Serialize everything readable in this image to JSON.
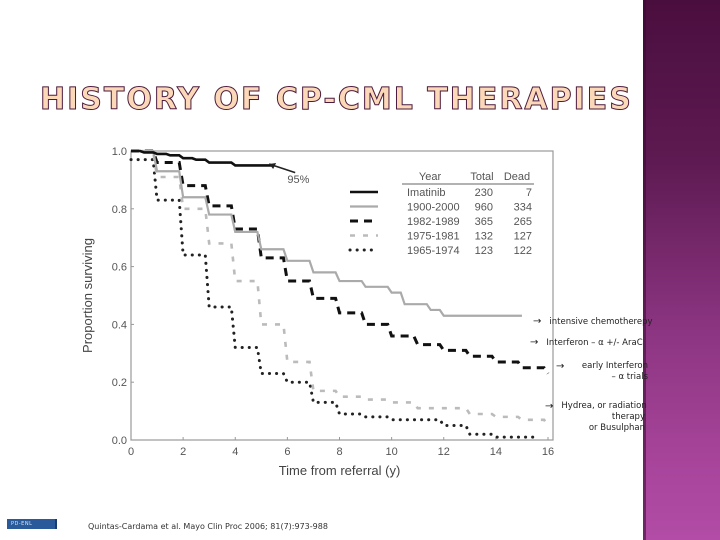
{
  "slide": {
    "title": "HISTORY OF CP-CML THERAPIES",
    "citation": "Quintas-Cardama et al. Mayo Clin Proc 2006; 81(7):973-988",
    "logo_text": "PD-ENL",
    "colors": {
      "title_fill": "#fbd9b8",
      "title_stroke": "#4b1b3f",
      "sidebar_top": "#4a0e3e",
      "sidebar_bottom": "#b24ca6"
    }
  },
  "annotations": [
    {
      "arrow": "→",
      "lines": [
        "intensive chemotherepy"
      ]
    },
    {
      "arrow": "→",
      "lines": [
        "Interferon – α +/- AraC"
      ]
    },
    {
      "arrow": "→",
      "lines": [
        "early Interferon",
        "– α trials"
      ]
    },
    {
      "arrow": "→",
      "lines": [
        "Hydrea, or radiation",
        "therapy",
        "or Busulphan"
      ]
    }
  ],
  "chart_data": {
    "type": "line",
    "title": "",
    "xlabel": "Time from referral (y)",
    "ylabel": "Proportion surviving",
    "xlim": [
      0,
      16
    ],
    "ylim": [
      0.0,
      1.0
    ],
    "xticks": [
      0,
      2,
      4,
      6,
      8,
      10,
      12,
      14,
      16
    ],
    "yticks": [
      "0.0",
      "0.2",
      "0.4",
      "0.6",
      "0.8",
      "1.0"
    ],
    "grid": false,
    "legend": {
      "position": "upper right",
      "headers": [
        "Year",
        "Total",
        "Dead"
      ],
      "entries": [
        {
          "name": "Imatinib",
          "total": "230",
          "dead": "7",
          "style": "solid-black"
        },
        {
          "name": "1900-2000",
          "total": "960",
          "dead": "334",
          "style": "solid-gray"
        },
        {
          "name": "1982-1989",
          "total": "365",
          "dead": "265",
          "style": "dashed-black"
        },
        {
          "name": "1975-1981",
          "total": "132",
          "dead": "127",
          "style": "dashed-gray"
        },
        {
          "name": "1965-1974",
          "total": "123",
          "dead": "122",
          "style": "dotted-black"
        }
      ]
    },
    "annotation_text": "95%",
    "series": [
      {
        "name": "Imatinib",
        "x": [
          0,
          0.5,
          1,
          1.5,
          2,
          2.5,
          3,
          3.5,
          4,
          4.5,
          5,
          5.5
        ],
        "values": [
          1.0,
          0.995,
          0.99,
          0.985,
          0.975,
          0.97,
          0.96,
          0.96,
          0.95,
          0.95,
          0.95,
          0.95
        ]
      },
      {
        "name": "1900-2000",
        "x": [
          0,
          1,
          2,
          3,
          4,
          5,
          6,
          7,
          8,
          9,
          10,
          10.5,
          11,
          11.5,
          12,
          13,
          14,
          15
        ],
        "values": [
          1.0,
          0.93,
          0.84,
          0.78,
          0.72,
          0.66,
          0.62,
          0.58,
          0.55,
          0.53,
          0.51,
          0.47,
          0.47,
          0.45,
          0.43,
          0.43,
          0.43,
          0.43
        ]
      },
      {
        "name": "1982-1989",
        "x": [
          0,
          1,
          2,
          3,
          4,
          5,
          6,
          7,
          8,
          9,
          10,
          11,
          12,
          13,
          14,
          15,
          16
        ],
        "values": [
          1.0,
          0.96,
          0.88,
          0.81,
          0.73,
          0.63,
          0.55,
          0.49,
          0.44,
          0.4,
          0.36,
          0.33,
          0.31,
          0.29,
          0.27,
          0.25,
          0.23
        ]
      },
      {
        "name": "1975-1981",
        "x": [
          0,
          1,
          2,
          3,
          4,
          5,
          6,
          7,
          8,
          9,
          10,
          11,
          12,
          13,
          14,
          15,
          16
        ],
        "values": [
          1.0,
          0.91,
          0.8,
          0.68,
          0.55,
          0.4,
          0.27,
          0.17,
          0.15,
          0.14,
          0.13,
          0.11,
          0.11,
          0.09,
          0.08,
          0.07,
          0.05
        ]
      },
      {
        "name": "1965-1974",
        "x": [
          0,
          1,
          2,
          3,
          4,
          5,
          6,
          7,
          8,
          9,
          10,
          11,
          12,
          13,
          14,
          15,
          15.5
        ],
        "values": [
          0.97,
          0.83,
          0.64,
          0.46,
          0.32,
          0.23,
          0.2,
          0.13,
          0.09,
          0.08,
          0.07,
          0.07,
          0.05,
          0.02,
          0.01,
          0.01,
          0.01
        ]
      }
    ]
  }
}
